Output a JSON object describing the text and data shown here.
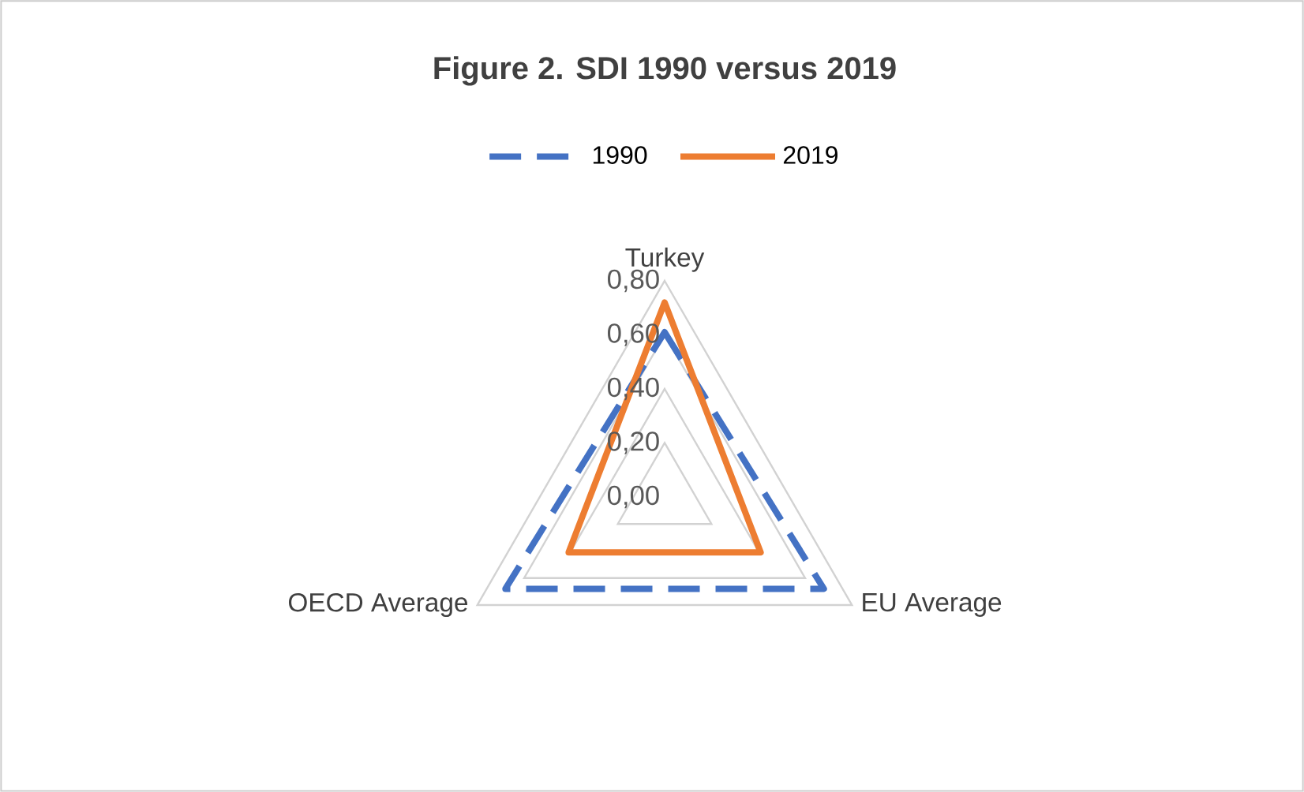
{
  "chart_data": {
    "type": "radar",
    "title": "Figure 2. SDI 1990 versus 2019",
    "categories": [
      "Turkey",
      "EU Average",
      "OECD Average"
    ],
    "series": [
      {
        "name": "1990",
        "color": "#4472c4",
        "line_style": "dashed",
        "values": [
          0.61,
          0.68,
          0.68
        ]
      },
      {
        "name": "2019",
        "color": "#ed7d31",
        "line_style": "solid",
        "values": [
          0.72,
          0.41,
          0.41
        ]
      }
    ],
    "ylim": [
      0,
      0.8
    ],
    "yticks": [
      {
        "value": 0,
        "label": "0,00"
      },
      {
        "value": 0.2,
        "label": "0,20"
      },
      {
        "value": 0.4,
        "label": "0,40"
      },
      {
        "value": 0.6,
        "label": "0,60"
      },
      {
        "value": 0.8,
        "label": "0,80"
      }
    ],
    "grid": true,
    "legend": "top"
  }
}
